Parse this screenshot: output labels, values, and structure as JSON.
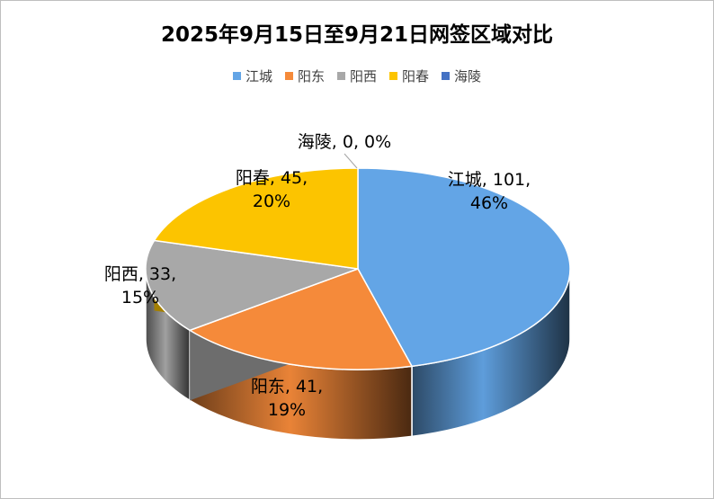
{
  "chart_data": {
    "type": "pie",
    "title": "2025年9月15日至9月21日网签区域对比",
    "legend_position": "top",
    "categories": [
      "江城",
      "阳东",
      "阳西",
      "阳春",
      "海陵"
    ],
    "values": [
      101,
      41,
      33,
      45,
      0
    ],
    "percentages": [
      "46%",
      "19%",
      "15%",
      "20%",
      "0%"
    ],
    "data_labels": [
      [
        "江城, 101,",
        "46%"
      ],
      [
        "阳东, 41,",
        "19%"
      ],
      [
        "阳西, 33,",
        "15%"
      ],
      [
        "阳春, 45,",
        "20%"
      ],
      [
        "海陵, 0, 0%"
      ]
    ],
    "colors": [
      "#63a5e6",
      "#f58a3a",
      "#a8a8a8",
      "#fcc400",
      "#4472c4"
    ],
    "style": "3d"
  }
}
